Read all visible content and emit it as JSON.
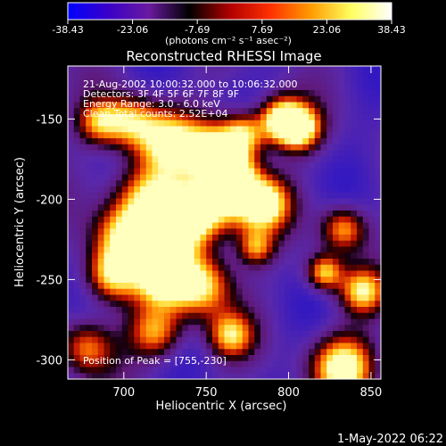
{
  "colorbar": {
    "tick_labels": [
      "-38.43",
      "-23.06",
      "-7.69",
      "7.69",
      "23.06",
      "38.43"
    ],
    "range": [
      -38.43,
      38.43
    ],
    "unit_label": "(photons cm⁻² s⁻¹ asec⁻²)",
    "colors": [
      "#0000ff",
      "#3a00c8",
      "#6a1aa0",
      "#000000",
      "#b00000",
      "#ff3000",
      "#ff9a00",
      "#ffff60",
      "#ffffff"
    ]
  },
  "chart_data": {
    "type": "heatmap",
    "title": "Reconstructed RHESSI Image",
    "xlabel": "Heliocentric X (arcsec)",
    "ylabel": "Heliocentric Y (arcsec)",
    "xlim": [
      666,
      856
    ],
    "ylim": [
      -312,
      -117
    ],
    "x_ticks": [
      "700",
      "750",
      "800",
      "850"
    ],
    "y_ticks": [
      "-150",
      "-200",
      "-250",
      "-300"
    ],
    "annotations": [
      "21-Aug-2002 10:00:32.000 to 10:06:32.000",
      "Detectors: 3F 4F 5F 6F 7F 8F 9F",
      "Energy Range: 3.0 - 6.0 keV",
      "Clean     Total counts: 2.52E+04"
    ],
    "peak_label": "Position of Peak = [755,-230]",
    "peak": [
      755,
      -230
    ]
  },
  "footer": {
    "date": "1-May-2022 06:22"
  }
}
